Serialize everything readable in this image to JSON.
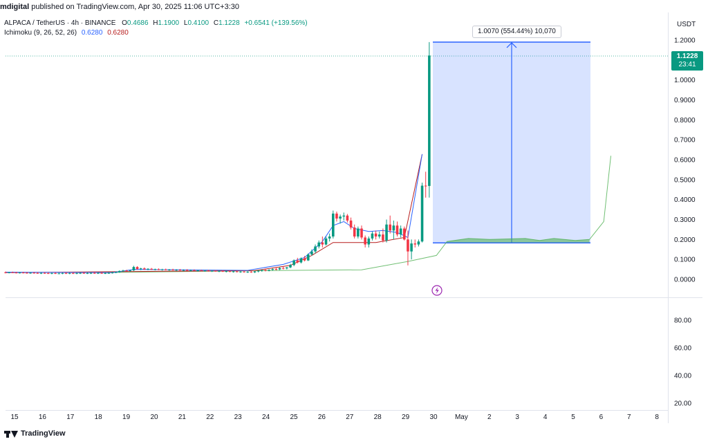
{
  "header": {
    "publisher": "mdigital",
    "published_text": "published on TradingView.com, Apr 30, 2025 11:06 UTC+3:30"
  },
  "symbol": {
    "pair": "ALPACA / TetherUS · 4h · BINANCE",
    "o_label": "O",
    "o_value": "0.4686",
    "h_label": "H",
    "h_value": "1.1900",
    "l_label": "L",
    "l_value": "0.4100",
    "c_label": "C",
    "c_value": "1.1228",
    "change": "+0.6541 (+139.56%)"
  },
  "indicator": {
    "name": "Ichimoku (9, 26, 52, 26)",
    "value1": "0.6280",
    "value2": "0.6280"
  },
  "price_scale": {
    "currency": "USDT",
    "labels": [
      "1.2000",
      "1.1000",
      "1.0000",
      "0.9000",
      "0.8000",
      "0.7000",
      "0.6000",
      "0.5000",
      "0.4000",
      "0.3000",
      "0.2000",
      "0.1000",
      "0.0000"
    ]
  },
  "volume_scale": {
    "labels": [
      "80.00",
      "60.00",
      "40.00",
      "20.00"
    ]
  },
  "current_price": {
    "price": "1.1228",
    "countdown": "23:41"
  },
  "measure": {
    "label": "1.0070 (554.44%) 10,070"
  },
  "time_axis": {
    "labels": [
      "15",
      "16",
      "17",
      "18",
      "19",
      "20",
      "21",
      "22",
      "23",
      "24",
      "25",
      "26",
      "27",
      "28",
      "29",
      "30",
      "May",
      "2",
      "3",
      "4",
      "5",
      "6",
      "7",
      "8"
    ]
  },
  "footer": {
    "brand": "TradingView"
  },
  "colors": {
    "up": "#089981",
    "down": "#f23645",
    "measure": "#2962ff",
    "conversion_line": "#2962ff",
    "base_line": "#b71c1c",
    "cloud": "#4caf50"
  },
  "chart_data": {
    "type": "candlestick",
    "interval": "4h",
    "ylim": [
      0,
      1.2
    ],
    "last_close": 1.1228,
    "measure": {
      "from": 0.183,
      "to": 1.19,
      "change": 1.007,
      "percent": 554.44,
      "ticks": 10070
    },
    "candles": [
      {
        "o": 0.035,
        "h": 0.04,
        "l": 0.03,
        "c": 0.034
      },
      {
        "o": 0.034,
        "h": 0.038,
        "l": 0.03,
        "c": 0.035
      },
      {
        "o": 0.035,
        "h": 0.039,
        "l": 0.031,
        "c": 0.034
      },
      {
        "o": 0.034,
        "h": 0.038,
        "l": 0.03,
        "c": 0.033
      },
      {
        "o": 0.033,
        "h": 0.037,
        "l": 0.029,
        "c": 0.034
      },
      {
        "o": 0.034,
        "h": 0.038,
        "l": 0.03,
        "c": 0.033
      },
      {
        "o": 0.033,
        "h": 0.037,
        "l": 0.029,
        "c": 0.032
      },
      {
        "o": 0.032,
        "h": 0.036,
        "l": 0.028,
        "c": 0.033
      },
      {
        "o": 0.033,
        "h": 0.037,
        "l": 0.029,
        "c": 0.032
      },
      {
        "o": 0.032,
        "h": 0.036,
        "l": 0.028,
        "c": 0.031
      },
      {
        "o": 0.031,
        "h": 0.035,
        "l": 0.027,
        "c": 0.032
      },
      {
        "o": 0.032,
        "h": 0.036,
        "l": 0.028,
        "c": 0.031
      },
      {
        "o": 0.031,
        "h": 0.035,
        "l": 0.027,
        "c": 0.03
      },
      {
        "o": 0.03,
        "h": 0.034,
        "l": 0.026,
        "c": 0.031
      },
      {
        "o": 0.031,
        "h": 0.035,
        "l": 0.027,
        "c": 0.03
      },
      {
        "o": 0.03,
        "h": 0.034,
        "l": 0.026,
        "c": 0.03
      },
      {
        "o": 0.03,
        "h": 0.034,
        "l": 0.026,
        "c": 0.031
      },
      {
        "o": 0.031,
        "h": 0.035,
        "l": 0.027,
        "c": 0.03
      },
      {
        "o": 0.03,
        "h": 0.034,
        "l": 0.026,
        "c": 0.031
      },
      {
        "o": 0.031,
        "h": 0.035,
        "l": 0.027,
        "c": 0.03
      },
      {
        "o": 0.03,
        "h": 0.034,
        "l": 0.026,
        "c": 0.031
      },
      {
        "o": 0.031,
        "h": 0.035,
        "l": 0.027,
        "c": 0.032
      },
      {
        "o": 0.032,
        "h": 0.036,
        "l": 0.028,
        "c": 0.031
      },
      {
        "o": 0.031,
        "h": 0.035,
        "l": 0.027,
        "c": 0.031
      },
      {
        "o": 0.031,
        "h": 0.036,
        "l": 0.027,
        "c": 0.032
      },
      {
        "o": 0.032,
        "h": 0.036,
        "l": 0.028,
        "c": 0.031
      },
      {
        "o": 0.031,
        "h": 0.035,
        "l": 0.027,
        "c": 0.032
      },
      {
        "o": 0.032,
        "h": 0.036,
        "l": 0.028,
        "c": 0.031
      },
      {
        "o": 0.031,
        "h": 0.035,
        "l": 0.027,
        "c": 0.031
      },
      {
        "o": 0.031,
        "h": 0.036,
        "l": 0.028,
        "c": 0.032
      },
      {
        "o": 0.032,
        "h": 0.038,
        "l": 0.029,
        "c": 0.034
      },
      {
        "o": 0.034,
        "h": 0.04,
        "l": 0.031,
        "c": 0.036
      },
      {
        "o": 0.036,
        "h": 0.045,
        "l": 0.033,
        "c": 0.042
      },
      {
        "o": 0.042,
        "h": 0.048,
        "l": 0.038,
        "c": 0.044
      },
      {
        "o": 0.044,
        "h": 0.048,
        "l": 0.04,
        "c": 0.043
      },
      {
        "o": 0.043,
        "h": 0.047,
        "l": 0.039,
        "c": 0.045
      },
      {
        "o": 0.045,
        "h": 0.068,
        "l": 0.042,
        "c": 0.062
      },
      {
        "o": 0.062,
        "h": 0.066,
        "l": 0.048,
        "c": 0.052
      },
      {
        "o": 0.052,
        "h": 0.058,
        "l": 0.046,
        "c": 0.055
      },
      {
        "o": 0.055,
        "h": 0.06,
        "l": 0.048,
        "c": 0.05
      },
      {
        "o": 0.05,
        "h": 0.056,
        "l": 0.046,
        "c": 0.053
      },
      {
        "o": 0.053,
        "h": 0.057,
        "l": 0.047,
        "c": 0.049
      },
      {
        "o": 0.049,
        "h": 0.054,
        "l": 0.045,
        "c": 0.051
      },
      {
        "o": 0.051,
        "h": 0.055,
        "l": 0.046,
        "c": 0.048
      },
      {
        "o": 0.048,
        "h": 0.053,
        "l": 0.044,
        "c": 0.05
      },
      {
        "o": 0.05,
        "h": 0.054,
        "l": 0.045,
        "c": 0.047
      },
      {
        "o": 0.047,
        "h": 0.052,
        "l": 0.043,
        "c": 0.049
      },
      {
        "o": 0.049,
        "h": 0.053,
        "l": 0.044,
        "c": 0.046
      },
      {
        "o": 0.046,
        "h": 0.051,
        "l": 0.042,
        "c": 0.048
      },
      {
        "o": 0.048,
        "h": 0.052,
        "l": 0.043,
        "c": 0.045
      },
      {
        "o": 0.045,
        "h": 0.05,
        "l": 0.041,
        "c": 0.047
      },
      {
        "o": 0.047,
        "h": 0.051,
        "l": 0.042,
        "c": 0.044
      },
      {
        "o": 0.044,
        "h": 0.049,
        "l": 0.04,
        "c": 0.046
      },
      {
        "o": 0.046,
        "h": 0.05,
        "l": 0.041,
        "c": 0.043
      },
      {
        "o": 0.043,
        "h": 0.048,
        "l": 0.039,
        "c": 0.045
      },
      {
        "o": 0.045,
        "h": 0.049,
        "l": 0.04,
        "c": 0.042
      },
      {
        "o": 0.042,
        "h": 0.047,
        "l": 0.038,
        "c": 0.044
      },
      {
        "o": 0.044,
        "h": 0.048,
        "l": 0.039,
        "c": 0.041
      },
      {
        "o": 0.041,
        "h": 0.046,
        "l": 0.037,
        "c": 0.043
      },
      {
        "o": 0.043,
        "h": 0.047,
        "l": 0.038,
        "c": 0.04
      },
      {
        "o": 0.04,
        "h": 0.045,
        "l": 0.036,
        "c": 0.042
      },
      {
        "o": 0.042,
        "h": 0.046,
        "l": 0.037,
        "c": 0.039
      },
      {
        "o": 0.039,
        "h": 0.044,
        "l": 0.035,
        "c": 0.041
      },
      {
        "o": 0.041,
        "h": 0.045,
        "l": 0.036,
        "c": 0.038
      },
      {
        "o": 0.038,
        "h": 0.043,
        "l": 0.034,
        "c": 0.04
      },
      {
        "o": 0.04,
        "h": 0.044,
        "l": 0.035,
        "c": 0.037
      },
      {
        "o": 0.037,
        "h": 0.042,
        "l": 0.033,
        "c": 0.039
      },
      {
        "o": 0.039,
        "h": 0.043,
        "l": 0.034,
        "c": 0.036
      },
      {
        "o": 0.036,
        "h": 0.041,
        "l": 0.032,
        "c": 0.038
      },
      {
        "o": 0.038,
        "h": 0.042,
        "l": 0.033,
        "c": 0.035
      },
      {
        "o": 0.035,
        "h": 0.042,
        "l": 0.032,
        "c": 0.04
      },
      {
        "o": 0.04,
        "h": 0.046,
        "l": 0.035,
        "c": 0.043
      },
      {
        "o": 0.043,
        "h": 0.05,
        "l": 0.038,
        "c": 0.047
      },
      {
        "o": 0.047,
        "h": 0.052,
        "l": 0.04,
        "c": 0.044
      },
      {
        "o": 0.044,
        "h": 0.05,
        "l": 0.04,
        "c": 0.048
      },
      {
        "o": 0.048,
        "h": 0.055,
        "l": 0.043,
        "c": 0.052
      },
      {
        "o": 0.052,
        "h": 0.058,
        "l": 0.045,
        "c": 0.05
      },
      {
        "o": 0.05,
        "h": 0.06,
        "l": 0.046,
        "c": 0.057
      },
      {
        "o": 0.057,
        "h": 0.065,
        "l": 0.05,
        "c": 0.055
      },
      {
        "o": 0.055,
        "h": 0.062,
        "l": 0.05,
        "c": 0.06
      },
      {
        "o": 0.06,
        "h": 0.078,
        "l": 0.056,
        "c": 0.072
      },
      {
        "o": 0.072,
        "h": 0.1,
        "l": 0.066,
        "c": 0.095
      },
      {
        "o": 0.095,
        "h": 0.108,
        "l": 0.08,
        "c": 0.085
      },
      {
        "o": 0.085,
        "h": 0.11,
        "l": 0.08,
        "c": 0.105
      },
      {
        "o": 0.105,
        "h": 0.118,
        "l": 0.09,
        "c": 0.095
      },
      {
        "o": 0.095,
        "h": 0.13,
        "l": 0.092,
        "c": 0.125
      },
      {
        "o": 0.125,
        "h": 0.15,
        "l": 0.118,
        "c": 0.14
      },
      {
        "o": 0.14,
        "h": 0.175,
        "l": 0.13,
        "c": 0.165
      },
      {
        "o": 0.165,
        "h": 0.195,
        "l": 0.155,
        "c": 0.185
      },
      {
        "o": 0.185,
        "h": 0.215,
        "l": 0.16,
        "c": 0.175
      },
      {
        "o": 0.175,
        "h": 0.215,
        "l": 0.17,
        "c": 0.205
      },
      {
        "o": 0.205,
        "h": 0.23,
        "l": 0.19,
        "c": 0.215
      },
      {
        "o": 0.215,
        "h": 0.345,
        "l": 0.205,
        "c": 0.33
      },
      {
        "o": 0.33,
        "h": 0.34,
        "l": 0.29,
        "c": 0.305
      },
      {
        "o": 0.305,
        "h": 0.325,
        "l": 0.28,
        "c": 0.315
      },
      {
        "o": 0.315,
        "h": 0.335,
        "l": 0.295,
        "c": 0.32
      },
      {
        "o": 0.32,
        "h": 0.328,
        "l": 0.285,
        "c": 0.295
      },
      {
        "o": 0.295,
        "h": 0.31,
        "l": 0.25,
        "c": 0.26
      },
      {
        "o": 0.26,
        "h": 0.275,
        "l": 0.205,
        "c": 0.215
      },
      {
        "o": 0.215,
        "h": 0.265,
        "l": 0.205,
        "c": 0.255
      },
      {
        "o": 0.255,
        "h": 0.27,
        "l": 0.2,
        "c": 0.21
      },
      {
        "o": 0.21,
        "h": 0.22,
        "l": 0.16,
        "c": 0.175
      },
      {
        "o": 0.175,
        "h": 0.215,
        "l": 0.16,
        "c": 0.205
      },
      {
        "o": 0.205,
        "h": 0.24,
        "l": 0.195,
        "c": 0.23
      },
      {
        "o": 0.23,
        "h": 0.245,
        "l": 0.2,
        "c": 0.215
      },
      {
        "o": 0.215,
        "h": 0.24,
        "l": 0.205,
        "c": 0.225
      },
      {
        "o": 0.225,
        "h": 0.255,
        "l": 0.185,
        "c": 0.195
      },
      {
        "o": 0.195,
        "h": 0.3,
        "l": 0.185,
        "c": 0.275
      },
      {
        "o": 0.275,
        "h": 0.32,
        "l": 0.23,
        "c": 0.245
      },
      {
        "o": 0.245,
        "h": 0.295,
        "l": 0.2,
        "c": 0.27
      },
      {
        "o": 0.27,
        "h": 0.29,
        "l": 0.215,
        "c": 0.225
      },
      {
        "o": 0.225,
        "h": 0.27,
        "l": 0.21,
        "c": 0.255
      },
      {
        "o": 0.255,
        "h": 0.265,
        "l": 0.195,
        "c": 0.2
      },
      {
        "o": 0.2,
        "h": 0.245,
        "l": 0.07,
        "c": 0.14
      },
      {
        "o": 0.14,
        "h": 0.2,
        "l": 0.1,
        "c": 0.18
      },
      {
        "o": 0.18,
        "h": 0.2,
        "l": 0.16,
        "c": 0.175
      },
      {
        "o": 0.175,
        "h": 0.2,
        "l": 0.165,
        "c": 0.19
      },
      {
        "o": 0.19,
        "h": 0.485,
        "l": 0.185,
        "c": 0.47
      },
      {
        "o": 0.47,
        "h": 0.54,
        "l": 0.41,
        "c": 0.469
      },
      {
        "o": 0.4686,
        "h": 1.19,
        "l": 0.41,
        "c": 1.1228
      }
    ],
    "ichimoku": {
      "conversion_line": [
        {
          "i": 0,
          "v": 0.036
        },
        {
          "i": 30,
          "v": 0.034
        },
        {
          "i": 36,
          "v": 0.05
        },
        {
          "i": 50,
          "v": 0.048
        },
        {
          "i": 68,
          "v": 0.045
        },
        {
          "i": 78,
          "v": 0.075
        },
        {
          "i": 84,
          "v": 0.11
        },
        {
          "i": 89,
          "v": 0.19
        },
        {
          "i": 92,
          "v": 0.27
        },
        {
          "i": 95,
          "v": 0.29
        },
        {
          "i": 98,
          "v": 0.255
        },
        {
          "i": 102,
          "v": 0.24
        },
        {
          "i": 106,
          "v": 0.245
        },
        {
          "i": 110,
          "v": 0.235
        },
        {
          "i": 113,
          "v": 0.21
        },
        {
          "i": 117,
          "v": 0.628
        }
      ],
      "base_line": [
        {
          "i": 0,
          "v": 0.034
        },
        {
          "i": 40,
          "v": 0.04
        },
        {
          "i": 70,
          "v": 0.044
        },
        {
          "i": 80,
          "v": 0.07
        },
        {
          "i": 86,
          "v": 0.12
        },
        {
          "i": 92,
          "v": 0.185
        },
        {
          "i": 104,
          "v": 0.185
        },
        {
          "i": 112,
          "v": 0.21
        },
        {
          "i": 117,
          "v": 0.628
        }
      ],
      "leading_span": [
        {
          "i": 26,
          "v": 0.034
        },
        {
          "i": 80,
          "v": 0.045
        },
        {
          "i": 100,
          "v": 0.048
        },
        {
          "i": 113,
          "v": 0.09
        },
        {
          "i": 121,
          "v": 0.12
        },
        {
          "i": 124,
          "v": 0.19
        },
        {
          "i": 130,
          "v": 0.205
        },
        {
          "i": 136,
          "v": 0.2
        },
        {
          "i": 146,
          "v": 0.205
        },
        {
          "i": 150,
          "v": 0.195
        },
        {
          "i": 154,
          "v": 0.205
        },
        {
          "i": 160,
          "v": 0.195
        },
        {
          "i": 164,
          "v": 0.2
        },
        {
          "i": 168,
          "v": 0.29
        },
        {
          "i": 170,
          "v": 0.62
        }
      ]
    }
  }
}
